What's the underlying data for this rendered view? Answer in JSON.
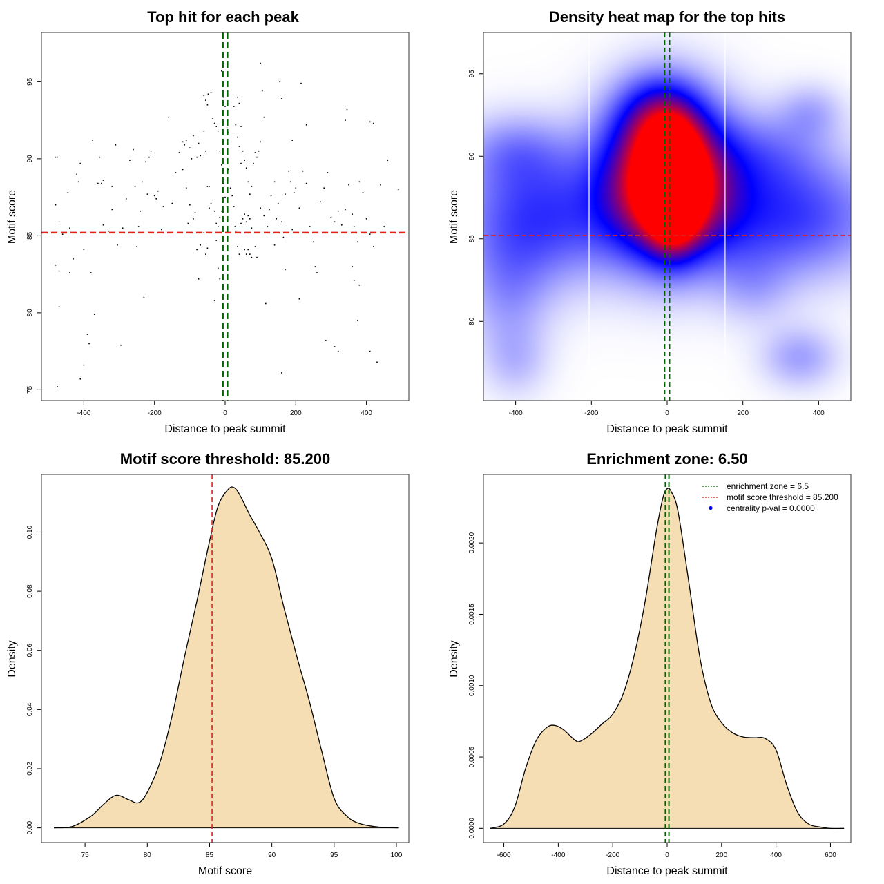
{
  "chart_data": [
    {
      "type": "scatter",
      "title": "Top hit for each peak",
      "xlabel": "Distance to peak summit",
      "ylabel": "Motif score",
      "xlim": [
        -520,
        520
      ],
      "ylim": [
        74.3,
        98.2
      ],
      "xticks": [
        -400,
        -200,
        0,
        200,
        400
      ],
      "xtick_labels": [
        "-400",
        "-200",
        "0",
        "200",
        "400"
      ],
      "yticks": [
        75,
        80,
        85,
        90,
        95
      ],
      "ytick_labels": [
        "75",
        "80",
        "85",
        "90",
        "95"
      ],
      "hline": 85.2,
      "vlines": [
        -6.5,
        6.5
      ],
      "points": [
        [
          -480,
          90.1
        ],
        [
          -475,
          90.1
        ],
        [
          -480,
          87
        ],
        [
          -470,
          85.9
        ],
        [
          -460,
          85.1
        ],
        [
          -470,
          80.4
        ],
        [
          -480,
          83.1
        ],
        [
          -470,
          82.7
        ],
        [
          -475,
          75.2
        ],
        [
          -445,
          87.8
        ],
        [
          -440,
          85.5
        ],
        [
          -430,
          85.2
        ],
        [
          -420,
          89
        ],
        [
          -410,
          89.7
        ],
        [
          -415,
          88.5
        ],
        [
          -400,
          84.1
        ],
        [
          -430,
          83.5
        ],
        [
          -440,
          82.6
        ],
        [
          -410,
          75.7
        ],
        [
          -400,
          76.6
        ],
        [
          -390,
          78.6
        ],
        [
          -385,
          78
        ],
        [
          -380,
          82.6
        ],
        [
          -375,
          91.2
        ],
        [
          -370,
          79.9
        ],
        [
          -360,
          88.4
        ],
        [
          -355,
          90.1
        ],
        [
          -350,
          88.4
        ],
        [
          -345,
          88.6
        ],
        [
          -345,
          85.7
        ],
        [
          -330,
          85.3
        ],
        [
          -320,
          86.7
        ],
        [
          -320,
          88.2
        ],
        [
          -310,
          90.9
        ],
        [
          -305,
          84.4
        ],
        [
          -295,
          77.9
        ],
        [
          -290,
          85.5
        ],
        [
          -280,
          87.4
        ],
        [
          -270,
          89.9
        ],
        [
          -260,
          90.6
        ],
        [
          -255,
          88.2
        ],
        [
          -250,
          84.3
        ],
        [
          -245,
          85.6
        ],
        [
          -240,
          86.6
        ],
        [
          -235,
          88.5
        ],
        [
          -230,
          81
        ],
        [
          -225,
          89.8
        ],
        [
          -220,
          87.7
        ],
        [
          -215,
          90.1
        ],
        [
          -210,
          90.5
        ],
        [
          -200,
          87.6
        ],
        [
          -195,
          87.4
        ],
        [
          -190,
          87.9
        ],
        [
          -180,
          85.4
        ],
        [
          -175,
          86.9
        ],
        [
          -160,
          92.7
        ],
        [
          -150,
          87.1
        ],
        [
          -140,
          89.1
        ],
        [
          -130,
          90.4
        ],
        [
          -120,
          89.3
        ],
        [
          -110,
          88.1
        ],
        [
          -105,
          85.8
        ],
        [
          -100,
          87
        ],
        [
          -90,
          86.1
        ],
        [
          -85,
          86.5
        ],
        [
          -80,
          84.1
        ],
        [
          -75,
          82.2
        ],
        [
          -70,
          84.4
        ],
        [
          -60,
          85.2
        ],
        [
          -55,
          83.8
        ],
        [
          -50,
          84.2
        ],
        [
          -45,
          86.8
        ],
        [
          -120,
          91.1
        ],
        [
          -115,
          90.9
        ],
        [
          -110,
          91.2
        ],
        [
          -100,
          90.7
        ],
        [
          -95,
          90
        ],
        [
          -90,
          91.5
        ],
        [
          -80,
          90.1
        ],
        [
          -75,
          91
        ],
        [
          -70,
          90.2
        ],
        [
          -60,
          91.8
        ],
        [
          -55,
          90.5
        ],
        [
          -50,
          88.2
        ],
        [
          -45,
          88.2
        ],
        [
          -40,
          87.1
        ],
        [
          -30,
          86.6
        ],
        [
          -25,
          85.8
        ],
        [
          -20,
          85.6
        ],
        [
          -15,
          86.2
        ],
        [
          -10,
          86.6
        ],
        [
          -60,
          94.1
        ],
        [
          -55,
          93.8
        ],
        [
          -50,
          93.5
        ],
        [
          -48,
          94.2
        ],
        [
          -40,
          94.3
        ],
        [
          -35,
          92.6
        ],
        [
          -30,
          92.3
        ],
        [
          -25,
          92.1
        ],
        [
          -20,
          91.8
        ],
        [
          -15,
          90.5
        ],
        [
          -10,
          89.6
        ],
        [
          -5,
          88.4
        ],
        [
          0,
          87.5
        ],
        [
          5,
          86.9
        ],
        [
          -25,
          84.7
        ],
        [
          -20,
          82.9
        ],
        [
          -15,
          82.2
        ],
        [
          -30,
          80.8
        ],
        [
          -10,
          95.7
        ],
        [
          -5,
          94
        ],
        [
          0,
          93.4
        ],
        [
          5,
          92
        ],
        [
          8,
          91.7
        ],
        [
          10,
          89.3
        ],
        [
          15,
          88.1
        ],
        [
          20,
          87.6
        ],
        [
          25,
          86.9
        ],
        [
          28,
          85.6
        ],
        [
          30,
          85.3
        ],
        [
          35,
          84.3
        ],
        [
          40,
          83.8
        ],
        [
          45,
          85.8
        ],
        [
          50,
          86.1
        ],
        [
          55,
          86.4
        ],
        [
          60,
          85.9
        ],
        [
          65,
          86.3
        ],
        [
          70,
          86.1
        ],
        [
          75,
          85.5
        ],
        [
          35,
          94
        ],
        [
          40,
          93.6
        ],
        [
          45,
          92.1
        ],
        [
          50,
          90.5
        ],
        [
          55,
          89.9
        ],
        [
          60,
          89.4
        ],
        [
          65,
          88.5
        ],
        [
          70,
          87.7
        ],
        [
          75,
          88.2
        ],
        [
          80,
          89.7
        ],
        [
          85,
          90.4
        ],
        [
          90,
          90.1
        ],
        [
          95,
          90.5
        ],
        [
          100,
          91.1
        ],
        [
          55,
          84.1
        ],
        [
          60,
          83.8
        ],
        [
          65,
          84.1
        ],
        [
          70,
          83.8
        ],
        [
          75,
          83.6
        ],
        [
          85,
          84.3
        ],
        [
          90,
          83.6
        ],
        [
          100,
          86.8
        ],
        [
          110,
          86.3
        ],
        [
          120,
          85.6
        ],
        [
          125,
          86.7
        ],
        [
          130,
          87.6
        ],
        [
          140,
          88.5
        ],
        [
          145,
          86.1
        ],
        [
          150,
          87.1
        ],
        [
          160,
          85.9
        ],
        [
          165,
          84.9
        ],
        [
          170,
          87.7
        ],
        [
          180,
          89.2
        ],
        [
          185,
          88.5
        ],
        [
          190,
          85.4
        ],
        [
          195,
          87.8
        ],
        [
          200,
          88.1
        ],
        [
          210,
          86.8
        ],
        [
          220,
          89.2
        ],
        [
          230,
          88.4
        ],
        [
          240,
          85.6
        ],
        [
          250,
          84.6
        ],
        [
          255,
          83
        ],
        [
          260,
          82.6
        ],
        [
          270,
          87.2
        ],
        [
          280,
          88.1
        ],
        [
          290,
          89.1
        ],
        [
          300,
          86.2
        ],
        [
          310,
          85.9
        ],
        [
          320,
          86.6
        ],
        [
          330,
          85.7
        ],
        [
          340,
          86.7
        ],
        [
          350,
          88.3
        ],
        [
          360,
          86.4
        ],
        [
          365,
          85.6
        ],
        [
          375,
          84.6
        ],
        [
          380,
          88.5
        ],
        [
          390,
          87.8
        ],
        [
          400,
          86.1
        ],
        [
          410,
          85.1
        ],
        [
          420,
          84.3
        ],
        [
          440,
          88.3
        ],
        [
          450,
          85.6
        ],
        [
          460,
          89.9
        ],
        [
          490,
          88
        ],
        [
          160,
          76.1
        ],
        [
          170,
          82.8
        ],
        [
          210,
          80.9
        ],
        [
          215,
          94.9
        ],
        [
          230,
          92.2
        ],
        [
          285,
          78.2
        ],
        [
          310,
          77.8
        ],
        [
          320,
          77.5
        ],
        [
          340,
          92.5
        ],
        [
          345,
          93.2
        ],
        [
          360,
          83
        ],
        [
          365,
          82.1
        ],
        [
          375,
          79.5
        ],
        [
          380,
          81.8
        ],
        [
          410,
          92.4
        ],
        [
          420,
          92.3
        ],
        [
          410,
          77.5
        ],
        [
          430,
          76.8
        ],
        [
          100,
          96.2
        ],
        [
          105,
          94.4
        ],
        [
          110,
          92.7
        ],
        [
          115,
          80.6
        ],
        [
          140,
          84.4
        ],
        [
          155,
          95
        ],
        [
          160,
          93.9
        ],
        [
          190,
          91.2
        ],
        [
          25,
          93.4
        ],
        [
          30,
          92.2
        ],
        [
          35,
          91.4
        ],
        [
          40,
          90.8
        ],
        [
          45,
          89.7
        ]
      ]
    },
    {
      "type": "heatmap",
      "title": "Density heat map for the top hits",
      "xlabel": "Distance to peak summit",
      "ylabel": "Motif score",
      "xlim": [
        -485,
        485
      ],
      "ylim": [
        75.2,
        97.5
      ],
      "xticks": [
        -400,
        -200,
        0,
        200,
        400
      ],
      "xtick_labels": [
        "-400",
        "-200",
        "0",
        "200",
        "400"
      ],
      "yticks": [
        80,
        85,
        90,
        95
      ],
      "ytick_labels": [
        "80",
        "85",
        "90",
        "95"
      ],
      "hline": 85.2,
      "vlines": [
        -6.5,
        6.5
      ],
      "gap_lines": [
        -206,
        153
      ],
      "colors": [
        "#ffffff",
        "#0000ff",
        "#ff0000"
      ],
      "blobs": [
        {
          "x": 0,
          "y": 88.5,
          "sx": 115,
          "sy": 3.2,
          "w": 1.25
        },
        {
          "x": 15,
          "y": 88.0,
          "sx": 45,
          "sy": 2.2,
          "w": 0.9
        },
        {
          "x": -20,
          "y": 92.5,
          "sx": 80,
          "sy": 1.8,
          "w": 0.35
        },
        {
          "x": -340,
          "y": 86.3,
          "sx": 150,
          "sy": 2.8,
          "w": 0.42
        },
        {
          "x": 320,
          "y": 86.3,
          "sx": 180,
          "sy": 2.6,
          "w": 0.42
        },
        {
          "x": -400,
          "y": 90.3,
          "sx": 100,
          "sy": 1.6,
          "w": 0.2
        },
        {
          "x": -420,
          "y": 81.5,
          "sx": 80,
          "sy": 2.5,
          "w": 0.18
        },
        {
          "x": 270,
          "y": 90.3,
          "sx": 110,
          "sy": 1.8,
          "w": 0.18
        },
        {
          "x": 350,
          "y": 77.8,
          "sx": 70,
          "sy": 1.3,
          "w": 0.2
        },
        {
          "x": 380,
          "y": 92.7,
          "sx": 60,
          "sy": 1.2,
          "w": 0.15
        },
        {
          "x": -400,
          "y": 77.5,
          "sx": 60,
          "sy": 1.5,
          "w": 0.12
        },
        {
          "x": 230,
          "y": 82.0,
          "sx": 70,
          "sy": 1.6,
          "w": 0.12
        }
      ]
    },
    {
      "type": "area",
      "title": "Motif score threshold: 85.200",
      "xlabel": "Motif score",
      "ylabel": "Density",
      "xlim": [
        71.5,
        101
      ],
      "ylim": [
        -0.005,
        0.1195
      ],
      "xticks": [
        75,
        80,
        85,
        90,
        95,
        100
      ],
      "xtick_labels": [
        "75",
        "80",
        "85",
        "90",
        "95",
        "100"
      ],
      "yticks": [
        0,
        0.02,
        0.04,
        0.06,
        0.08,
        0.1
      ],
      "ytick_labels": [
        "0.00",
        "0.02",
        "0.04",
        "0.06",
        "0.08",
        "0.10"
      ],
      "vline": 85.2,
      "fill_color": "#f5deb3",
      "x": [
        72.5,
        74,
        75.5,
        76.5,
        77.5,
        78.5,
        79.3,
        80,
        81,
        82,
        83,
        84,
        85,
        85.7,
        86.5,
        87,
        87.5,
        88.2,
        89,
        90,
        91,
        92,
        93,
        94,
        95,
        96,
        97,
        98.5,
        100.2
      ],
      "y": [
        0,
        0.0005,
        0.004,
        0.008,
        0.011,
        0.0095,
        0.0085,
        0.012,
        0.022,
        0.038,
        0.058,
        0.077,
        0.097,
        0.109,
        0.1145,
        0.115,
        0.112,
        0.106,
        0.1,
        0.091,
        0.074,
        0.058,
        0.043,
        0.026,
        0.01,
        0.004,
        0.0015,
        0.0003,
        0
      ]
    },
    {
      "type": "area",
      "title": "Enrichment zone: 6.50",
      "xlabel": "Distance to peak summit",
      "ylabel": "Density",
      "xlim": [
        -675,
        675
      ],
      "ylim": [
        -0.0001,
        0.00248
      ],
      "xticks": [
        -600,
        -400,
        -200,
        0,
        200,
        400,
        600
      ],
      "xtick_labels": [
        "-600",
        "-400",
        "-200",
        "0",
        "200",
        "400",
        "600"
      ],
      "yticks": [
        0,
        0.0005,
        0.001,
        0.0015,
        0.002
      ],
      "ytick_labels": [
        "0.0000",
        "0.0005",
        "0.0010",
        "0.0015",
        "0.0020"
      ],
      "vlines": [
        -6.5,
        6.5
      ],
      "fill_color": "#f5deb3",
      "x": [
        -650,
        -600,
        -560,
        -520,
        -480,
        -440,
        -410,
        -380,
        -340,
        -320,
        -280,
        -240,
        -200,
        -160,
        -120,
        -80,
        -40,
        -15,
        0,
        15,
        40,
        80,
        120,
        160,
        200,
        240,
        280,
        320,
        360,
        400,
        440,
        480,
        520,
        560,
        600,
        650
      ],
      "y": [
        0,
        3e-05,
        0.00015,
        0.00042,
        0.00062,
        0.00071,
        0.00072,
        0.00069,
        0.00062,
        0.00061,
        0.00066,
        0.00073,
        0.0008,
        0.00095,
        0.00122,
        0.0016,
        0.00208,
        0.00232,
        0.00238,
        0.00236,
        0.00222,
        0.00172,
        0.0012,
        0.00088,
        0.00074,
        0.00067,
        0.00064,
        0.000635,
        0.00063,
        0.00055,
        0.0003,
        0.00011,
        3e-05,
        1e-05,
        0,
        0
      ],
      "legend": [
        {
          "label": "enrichment zone = 6.5",
          "color": "#006400",
          "style": "dotted"
        },
        {
          "label": "motif score threshold = 85.200",
          "color": "#ff0000",
          "style": "dotted"
        },
        {
          "label": "centrality p-val = 0.0000",
          "color": "#0000ff",
          "style": "dot"
        }
      ]
    }
  ]
}
